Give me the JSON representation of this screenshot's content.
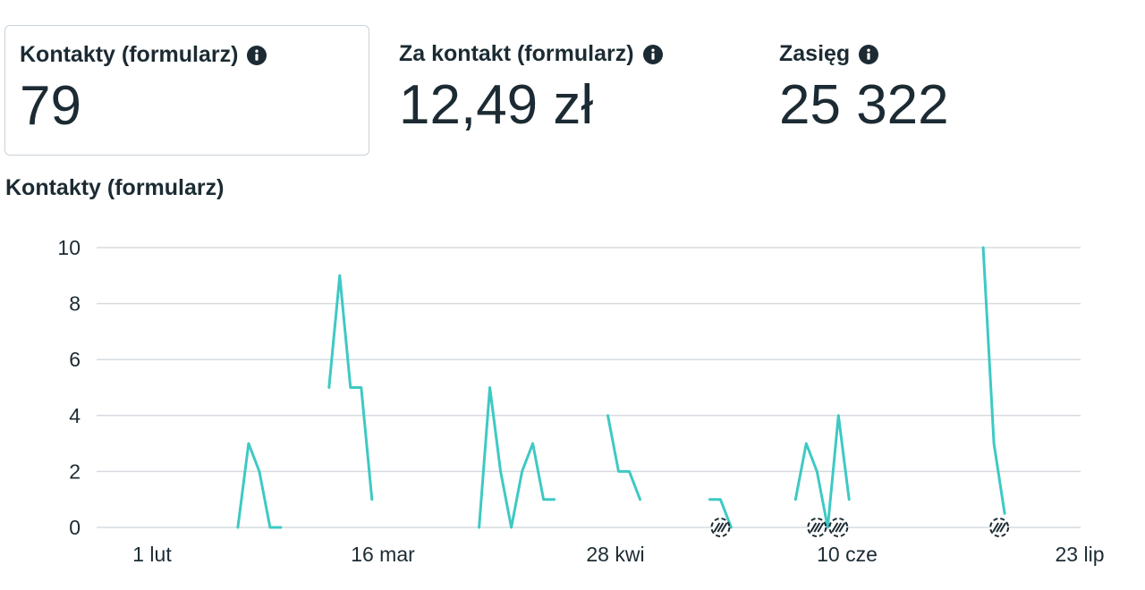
{
  "metrics": [
    {
      "label": "Kontakty (formularz)",
      "value": "79",
      "selected": true
    },
    {
      "label": "Za kontakt (formularz)",
      "value": "12,49 zł",
      "selected": false
    },
    {
      "label": "Zasięg",
      "value": "25 322",
      "selected": false
    }
  ],
  "info_icon": "info-circle-icon",
  "colors": {
    "line": "#3ec9c4",
    "grid": "#d6dbe0",
    "text": "#1c2b33",
    "card_border": "#cbd2d9"
  },
  "chart_data": {
    "type": "line",
    "title": "Kontakty (formularz)",
    "xlabel": "",
    "ylabel": "",
    "x_ticks": [
      "1 lut",
      "16 mar",
      "28 kwi",
      "10 cze",
      "23 lip"
    ],
    "y_ticks": [
      "0",
      "2",
      "4",
      "6",
      "8",
      "10"
    ],
    "ylim": [
      0,
      10
    ],
    "grid": true,
    "series": [
      {
        "segments": [
          [
            [
              "2024-02-17",
              0
            ],
            [
              "2024-02-19",
              3
            ],
            [
              "2024-02-21",
              2
            ],
            [
              "2024-02-23",
              0
            ],
            [
              "2024-02-25",
              0
            ]
          ],
          [
            [
              "2024-03-05",
              5
            ],
            [
              "2024-03-07",
              9
            ],
            [
              "2024-03-09",
              5
            ],
            [
              "2024-03-11",
              5
            ],
            [
              "2024-03-13",
              1
            ]
          ],
          [
            [
              "2024-04-02",
              0
            ],
            [
              "2024-04-04",
              5
            ],
            [
              "2024-04-06",
              2
            ],
            [
              "2024-04-08",
              0
            ],
            [
              "2024-04-10",
              2
            ],
            [
              "2024-04-12",
              3
            ],
            [
              "2024-04-14",
              1
            ],
            [
              "2024-04-16",
              1
            ]
          ],
          [
            [
              "2024-04-26",
              4
            ],
            [
              "2024-04-28",
              2
            ],
            [
              "2024-04-30",
              2
            ],
            [
              "2024-05-02",
              1
            ]
          ],
          [
            [
              "2024-05-15",
              1
            ],
            [
              "2024-05-17",
              1
            ],
            [
              "2024-05-19",
              0
            ]
          ],
          [
            [
              "2024-05-31",
              1
            ],
            [
              "2024-06-02",
              3
            ],
            [
              "2024-06-04",
              2
            ],
            [
              "2024-06-06",
              0
            ],
            [
              "2024-06-08",
              4
            ],
            [
              "2024-06-10",
              1
            ]
          ],
          [
            [
              "2024-07-05",
              10
            ],
            [
              "2024-07-07",
              3
            ],
            [
              "2024-07-09",
              0.5
            ]
          ]
        ]
      }
    ],
    "markers": [
      "2024-05-17",
      "2024-06-04",
      "2024-06-08",
      "2024-07-08"
    ]
  }
}
